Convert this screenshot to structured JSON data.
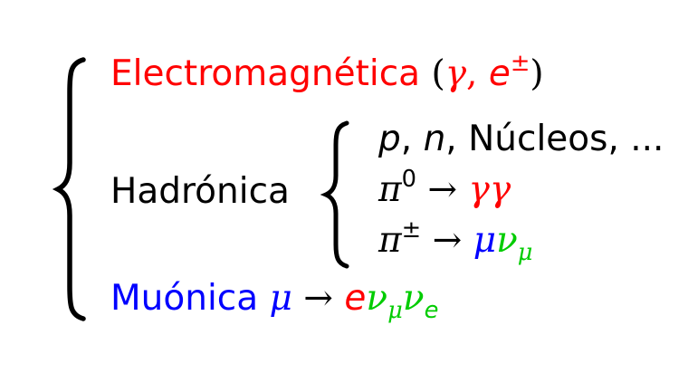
{
  "colors": {
    "electromagnetic": "#ff0000",
    "muonic": "#0000ff",
    "neutrino": "#00cc00",
    "text": "#000000"
  },
  "outer_group": {
    "electromagnetic": {
      "label": "Electromagnética",
      "open_paren": "(",
      "gamma": "γ",
      "comma": ",",
      "e": "e",
      "e_sup": "±",
      "close_paren": ")"
    },
    "hadronic": {
      "label": "Hadrónica",
      "items": {
        "nucleons": {
          "p": "p",
          "comma1": ",",
          "n": "n",
          "comma2": ",",
          "rest": "Núcleos, ..."
        },
        "pi0": {
          "pi": "π",
          "sup": "0",
          "arrow": "→",
          "products": "γγ"
        },
        "pipm": {
          "pi": "π",
          "sup": "±",
          "arrow": "→",
          "mu": "μ",
          "nu": "ν",
          "nu_sub": "μ"
        }
      }
    },
    "muonic": {
      "label": "Muónica",
      "mu": "μ",
      "arrow": "→",
      "e": "e",
      "nu1": "ν",
      "nu1_sub": "μ",
      "nu2": "ν",
      "nu2_sub": "e"
    }
  }
}
